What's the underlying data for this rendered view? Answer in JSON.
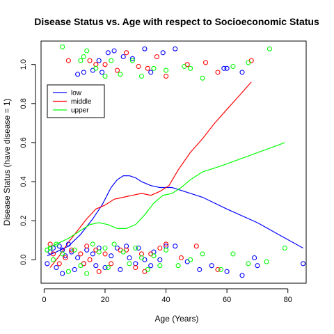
{
  "chart_data": {
    "type": "scatter",
    "title": "Disease Status vs. Age with respect to Socioeconomic Status",
    "xlabel": "Age (Years)",
    "ylabel": "Disease Status (have disease = 1)",
    "xlim": [
      -1,
      86
    ],
    "ylim": [
      -0.12,
      1.12
    ],
    "xticks": [
      0,
      20,
      40,
      60,
      80
    ],
    "yticks": [
      0.0,
      0.2,
      0.4,
      0.6,
      0.8,
      1.0
    ],
    "ytick_labels": [
      "0.0",
      "0.2",
      "0.4",
      "0.6",
      "0.8",
      "1.0"
    ],
    "legend_position": "top-left",
    "series": [
      {
        "name": "low",
        "color": "#0000ff",
        "points": [
          [
            1,
            -0.02
          ],
          [
            2,
            0.04
          ],
          [
            3,
            0.06
          ],
          [
            4,
            -0.04
          ],
          [
            5,
            0.07
          ],
          [
            6,
            0.05
          ],
          [
            6,
            -0.07
          ],
          [
            7,
            0.02
          ],
          [
            8,
            0.08
          ],
          [
            9,
            0.04
          ],
          [
            10,
            -0.05
          ],
          [
            11,
            0.01
          ],
          [
            13,
            -0.02
          ],
          [
            14,
            0.05
          ],
          [
            16,
            0.03
          ],
          [
            17,
            -0.03
          ],
          [
            18,
            0.06
          ],
          [
            20,
            -0.04
          ],
          [
            22,
            0.02
          ],
          [
            24,
            0.06
          ],
          [
            25,
            -0.05
          ],
          [
            27,
            0.07
          ],
          [
            28,
            0.01
          ],
          [
            30,
            -0.02
          ],
          [
            31,
            0.06
          ],
          [
            33,
            0.0
          ],
          [
            35,
            -0.03
          ],
          [
            36,
            0.04
          ],
          [
            38,
            0.0
          ],
          [
            40,
            0.07
          ],
          [
            43,
            0.07
          ],
          [
            47,
            -0.01
          ],
          [
            51,
            -0.05
          ],
          [
            55,
            -0.03
          ],
          [
            60,
            -0.06
          ],
          [
            65,
            -0.08
          ],
          [
            69,
            0.01
          ],
          [
            70,
            -0.03
          ],
          [
            85,
            -0.02
          ],
          [
            11,
            0.95
          ],
          [
            13,
            0.96
          ],
          [
            16,
            0.97
          ],
          [
            18,
            1.02
          ],
          [
            19,
            0.96
          ],
          [
            21,
            1.06
          ],
          [
            23,
            1.07
          ],
          [
            26,
            1.04
          ],
          [
            29,
            1.03
          ],
          [
            33,
            1.08
          ],
          [
            35,
            0.96
          ],
          [
            39,
            1.06
          ],
          [
            43,
            1.08
          ],
          [
            59,
            0.98
          ],
          [
            60,
            0.98
          ],
          [
            65,
            0.96
          ]
        ]
      },
      {
        "name": "middle",
        "color": "#ff0000",
        "points": [
          [
            2,
            0.08
          ],
          [
            3,
            0.03
          ],
          [
            5,
            -0.02
          ],
          [
            7,
            0.01
          ],
          [
            9,
            0.05
          ],
          [
            12,
            0.03
          ],
          [
            13,
            -0.02
          ],
          [
            14,
            0.07
          ],
          [
            15,
            0.0
          ],
          [
            17,
            0.05
          ],
          [
            18,
            -0.06
          ],
          [
            20,
            0.03
          ],
          [
            22,
            -0.02
          ],
          [
            25,
            0.05
          ],
          [
            27,
            0.05
          ],
          [
            30,
            -0.04
          ],
          [
            32,
            0.03
          ],
          [
            33,
            -0.06
          ],
          [
            35,
            0.03
          ],
          [
            38,
            0.06
          ],
          [
            40,
            0.08
          ],
          [
            45,
            0.01
          ],
          [
            50,
            0.07
          ],
          [
            57,
            -0.05
          ],
          [
            8,
            1.02
          ],
          [
            15,
            1.02
          ],
          [
            17,
            1.0
          ],
          [
            20,
            1.0
          ],
          [
            24,
            0.97
          ],
          [
            27,
            1.06
          ],
          [
            31,
            0.99
          ],
          [
            34,
            0.98
          ],
          [
            37,
            1.04
          ],
          [
            40,
            0.94
          ],
          [
            47,
            1.0
          ],
          [
            53,
            1.01
          ],
          [
            57,
            0.96
          ],
          [
            68,
            1.02
          ]
        ]
      },
      {
        "name": "upper",
        "color": "#00ff00",
        "points": [
          [
            1,
            0.05
          ],
          [
            2,
            0.06
          ],
          [
            3,
            0.0
          ],
          [
            4,
            0.08
          ],
          [
            6,
            0.03
          ],
          [
            8,
            -0.06
          ],
          [
            10,
            0.05
          ],
          [
            12,
            -0.03
          ],
          [
            14,
            -0.07
          ],
          [
            16,
            0.08
          ],
          [
            18,
            0.04
          ],
          [
            20,
            0.06
          ],
          [
            21,
            -0.04
          ],
          [
            23,
            0.08
          ],
          [
            26,
            0.04
          ],
          [
            28,
            -0.02
          ],
          [
            30,
            0.06
          ],
          [
            32,
            0.01
          ],
          [
            34,
            -0.05
          ],
          [
            36,
            0.02
          ],
          [
            38,
            -0.03
          ],
          [
            40,
            0.05
          ],
          [
            44,
            -0.03
          ],
          [
            48,
            0.0
          ],
          [
            52,
            0.03
          ],
          [
            58,
            -0.05
          ],
          [
            62,
            0.03
          ],
          [
            67,
            -0.02
          ],
          [
            73,
            -0.01
          ],
          [
            79,
            0.06
          ],
          [
            6,
            1.09
          ],
          [
            12,
            1.02
          ],
          [
            13,
            1.04
          ],
          [
            14,
            1.07
          ],
          [
            17,
            0.98
          ],
          [
            20,
            0.94
          ],
          [
            22,
            1.02
          ],
          [
            25,
            0.95
          ],
          [
            29,
            1.02
          ],
          [
            32,
            0.94
          ],
          [
            36,
            0.98
          ],
          [
            40,
            0.97
          ],
          [
            46,
            0.99
          ],
          [
            48,
            0.98
          ],
          [
            52,
            0.93
          ],
          [
            62,
            0.99
          ],
          [
            67,
            1.01
          ],
          [
            74,
            1.08
          ]
        ]
      }
    ],
    "smooth_lines": [
      {
        "name": "low",
        "color": "#0000ff",
        "points": [
          [
            1,
            0.02
          ],
          [
            4,
            0.04
          ],
          [
            8,
            0.07
          ],
          [
            12,
            0.13
          ],
          [
            16,
            0.21
          ],
          [
            19,
            0.28
          ],
          [
            22,
            0.37
          ],
          [
            24,
            0.41
          ],
          [
            26,
            0.43
          ],
          [
            28,
            0.43
          ],
          [
            30,
            0.42
          ],
          [
            32,
            0.4
          ],
          [
            35,
            0.38
          ],
          [
            38,
            0.37
          ],
          [
            42,
            0.37
          ],
          [
            46,
            0.35
          ],
          [
            52,
            0.32
          ],
          [
            60,
            0.26
          ],
          [
            70,
            0.19
          ],
          [
            78,
            0.12
          ],
          [
            85,
            0.06
          ]
        ]
      },
      {
        "name": "middle",
        "color": "#ff0000",
        "points": [
          [
            2,
            -0.04
          ],
          [
            5,
            0.02
          ],
          [
            8,
            0.09
          ],
          [
            11,
            0.15
          ],
          [
            14,
            0.21
          ],
          [
            17,
            0.26
          ],
          [
            20,
            0.28
          ],
          [
            23,
            0.31
          ],
          [
            26,
            0.32
          ],
          [
            29,
            0.33
          ],
          [
            32,
            0.34
          ],
          [
            35,
            0.33
          ],
          [
            38,
            0.35
          ],
          [
            41,
            0.38
          ],
          [
            44,
            0.46
          ],
          [
            48,
            0.55
          ],
          [
            52,
            0.62
          ],
          [
            56,
            0.7
          ],
          [
            60,
            0.77
          ],
          [
            64,
            0.84
          ],
          [
            68,
            0.91
          ]
        ]
      },
      {
        "name": "upper",
        "color": "#00ff00",
        "points": [
          [
            1,
            0.06
          ],
          [
            4,
            0.08
          ],
          [
            8,
            0.11
          ],
          [
            12,
            0.15
          ],
          [
            15,
            0.18
          ],
          [
            18,
            0.19
          ],
          [
            21,
            0.18
          ],
          [
            24,
            0.16
          ],
          [
            27,
            0.16
          ],
          [
            30,
            0.18
          ],
          [
            33,
            0.23
          ],
          [
            36,
            0.29
          ],
          [
            39,
            0.33
          ],
          [
            42,
            0.34
          ],
          [
            45,
            0.37
          ],
          [
            48,
            0.41
          ],
          [
            52,
            0.45
          ],
          [
            58,
            0.48
          ],
          [
            65,
            0.52
          ],
          [
            72,
            0.56
          ],
          [
            79,
            0.6
          ]
        ]
      }
    ]
  }
}
